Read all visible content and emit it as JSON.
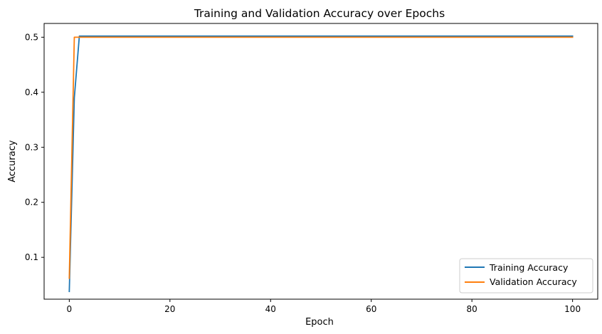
{
  "chart_data": {
    "type": "line",
    "title": "Training and Validation Accuracy over Epochs",
    "xlabel": "Epoch",
    "ylabel": "Accuracy",
    "xlim": [
      -5,
      105
    ],
    "ylim": [
      0.024,
      0.525
    ],
    "xticks": [
      0,
      20,
      40,
      60,
      80,
      100
    ],
    "yticks": [
      0.1,
      0.2,
      0.3,
      0.4,
      0.5
    ],
    "grid": false,
    "legend_position": "lower-right",
    "series": [
      {
        "name": "Training Accuracy",
        "color": "#1f77b4",
        "x": [
          0,
          1,
          2,
          100
        ],
        "y": [
          0.038,
          0.39,
          0.502,
          0.502
        ]
      },
      {
        "name": "Validation Accuracy",
        "color": "#ff7f0e",
        "x": [
          0,
          1,
          2,
          100
        ],
        "y": [
          0.062,
          0.5,
          0.5,
          0.5
        ]
      }
    ]
  }
}
